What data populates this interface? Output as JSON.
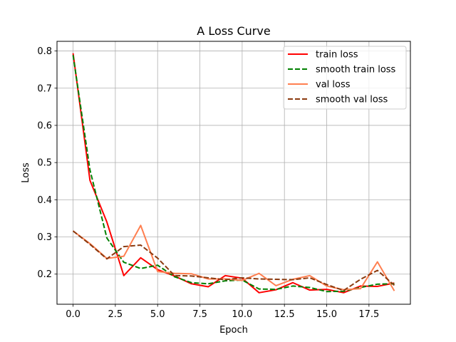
{
  "chart_data": {
    "type": "line",
    "title": "A Loss Curve",
    "xlabel": "Epoch",
    "ylabel": "Loss",
    "xlim": [
      -0.95,
      19.95
    ],
    "ylim": [
      0.119,
      0.826
    ],
    "grid": true,
    "legend_position": "top-right",
    "x": [
      0,
      1,
      2,
      3,
      4,
      5,
      6,
      7,
      8,
      9,
      10,
      11,
      12,
      13,
      14,
      15,
      16,
      17,
      18,
      19
    ],
    "xticks": [
      0.0,
      2.5,
      5.0,
      7.5,
      10.0,
      12.5,
      15.0,
      17.5
    ],
    "xtick_labels": [
      "0.0",
      "2.5",
      "5.0",
      "7.5",
      "10.0",
      "12.5",
      "15.0",
      "17.5"
    ],
    "yticks": [
      0.2,
      0.3,
      0.4,
      0.5,
      0.6,
      0.7,
      0.8
    ],
    "ytick_labels": [
      "0.2",
      "0.3",
      "0.4",
      "0.5",
      "0.6",
      "0.7",
      "0.8"
    ],
    "series": [
      {
        "name": "train loss",
        "color": "#ff0000",
        "style": "solid",
        "values": [
          0.794,
          0.452,
          0.34,
          0.196,
          0.244,
          0.212,
          0.195,
          0.174,
          0.166,
          0.196,
          0.189,
          0.15,
          0.158,
          0.177,
          0.157,
          0.159,
          0.15,
          0.168,
          0.167,
          0.176
        ]
      },
      {
        "name": "smooth train loss",
        "color": "#008000",
        "style": "dashed",
        "values": [
          0.789,
          0.48,
          0.297,
          0.232,
          0.215,
          0.224,
          0.193,
          0.177,
          0.174,
          0.182,
          0.184,
          0.16,
          0.159,
          0.168,
          0.164,
          0.153,
          0.154,
          0.164,
          0.173,
          0.174
        ]
      },
      {
        "name": "val loss",
        "color": "#ff7f50",
        "style": "solid",
        "values": [
          0.316,
          0.282,
          0.242,
          0.248,
          0.331,
          0.207,
          0.202,
          0.201,
          0.187,
          0.187,
          0.183,
          0.202,
          0.169,
          0.186,
          0.196,
          0.168,
          0.158,
          0.161,
          0.233,
          0.155
        ]
      },
      {
        "name": "smooth val loss",
        "color": "#8b3a0f",
        "style": "dashed",
        "values": [
          0.316,
          0.28,
          0.241,
          0.274,
          0.278,
          0.243,
          0.196,
          0.195,
          0.19,
          0.185,
          0.19,
          0.187,
          0.186,
          0.185,
          0.19,
          0.172,
          0.156,
          0.186,
          0.21,
          0.17
        ]
      }
    ]
  }
}
